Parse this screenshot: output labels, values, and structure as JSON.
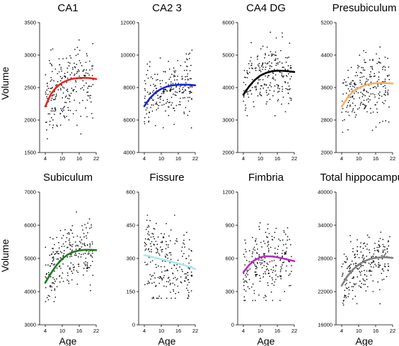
{
  "figure": {
    "ylabel": "Volume",
    "xlabel": "Age"
  },
  "chart_data": [
    {
      "type": "scatter",
      "title": "CA1",
      "xlabel": "",
      "ylabel": "Volume",
      "xlim": [
        2,
        22
      ],
      "ylim": [
        1500,
        3500
      ],
      "xticks": [
        4,
        10,
        16,
        22
      ],
      "yticks": [
        1500,
        2000,
        2500,
        3000,
        3500
      ],
      "ytick_labels": [
        "1500",
        "2000",
        "2500",
        "3000",
        "3500"
      ],
      "fit_color": "#e8231f",
      "fit": [
        [
          4,
          2210
        ],
        [
          6,
          2400
        ],
        [
          8,
          2510
        ],
        [
          10,
          2575
        ],
        [
          12,
          2615
        ],
        [
          14,
          2638
        ],
        [
          16,
          2648
        ],
        [
          18,
          2650
        ],
        [
          20,
          2645
        ],
        [
          22,
          2632
        ]
      ],
      "scatter_range": [
        4,
        21
      ],
      "scatter_center": [
        2200,
        2640
      ],
      "scatter_spread": 300,
      "scatter_bounds": [
        1530,
        3450
      ],
      "seed": 11
    },
    {
      "type": "scatter",
      "title": "CA2 3",
      "xlabel": "",
      "ylabel": "",
      "xlim": [
        2,
        22
      ],
      "ylim": [
        4000,
        12000
      ],
      "xticks": [
        4,
        10,
        16,
        22
      ],
      "yticks": [
        4000,
        6000,
        8000,
        10000,
        12000
      ],
      "ytick_labels": [
        "4000",
        "6000",
        "8000",
        "10000",
        "12000"
      ],
      "fit_color": "#1726d6",
      "fit": [
        [
          4,
          6850
        ],
        [
          6,
          7350
        ],
        [
          8,
          7700
        ],
        [
          10,
          7920
        ],
        [
          12,
          8060
        ],
        [
          14,
          8140
        ],
        [
          16,
          8170
        ],
        [
          18,
          8180
        ],
        [
          20,
          8170
        ],
        [
          22,
          8140
        ]
      ],
      "scatter_range": [
        4,
        21
      ],
      "scatter_center": [
        6900,
        8150
      ],
      "scatter_spread": 950,
      "scatter_bounds": [
        4300,
        11200
      ],
      "seed": 23
    },
    {
      "type": "scatter",
      "title": "CA4 DG",
      "xlabel": "",
      "ylabel": "",
      "xlim": [
        2,
        22
      ],
      "ylim": [
        2000,
        6000
      ],
      "xticks": [
        4,
        10,
        16,
        22
      ],
      "yticks": [
        2000,
        3000,
        4000,
        5000,
        6000
      ],
      "ytick_labels": [
        "2000",
        "3000",
        "4000",
        "5000",
        "6000"
      ],
      "fit_color": "#000000",
      "fit": [
        [
          4,
          3780
        ],
        [
          6,
          4030
        ],
        [
          8,
          4230
        ],
        [
          10,
          4370
        ],
        [
          12,
          4450
        ],
        [
          14,
          4500
        ],
        [
          16,
          4520
        ],
        [
          18,
          4515
        ],
        [
          20,
          4500
        ],
        [
          22,
          4480
        ]
      ],
      "scatter_range": [
        4,
        21
      ],
      "scatter_center": [
        3800,
        4500
      ],
      "scatter_spread": 480,
      "scatter_bounds": [
        2350,
        5950
      ],
      "seed": 37
    },
    {
      "type": "scatter",
      "title": "Presubiculum",
      "xlabel": "",
      "ylabel": "",
      "xlim": [
        2,
        22
      ],
      "ylim": [
        2000,
        5200
      ],
      "xticks": [
        4,
        10,
        16,
        22
      ],
      "yticks": [
        2000,
        2800,
        3600,
        4400,
        5200
      ],
      "ytick_labels": [
        "2000",
        "2800",
        "3600",
        "4400",
        "5200"
      ],
      "fit_color": "#f5b06a",
      "fit": [
        [
          4,
          3130
        ],
        [
          6,
          3350
        ],
        [
          8,
          3500
        ],
        [
          10,
          3590
        ],
        [
          12,
          3650
        ],
        [
          14,
          3690
        ],
        [
          16,
          3710
        ],
        [
          18,
          3715
        ],
        [
          20,
          3710
        ],
        [
          22,
          3700
        ]
      ],
      "scatter_range": [
        4,
        21
      ],
      "scatter_center": [
        3100,
        3700
      ],
      "scatter_spread": 400,
      "scatter_bounds": [
        2450,
        4800
      ],
      "seed": 41
    },
    {
      "type": "scatter",
      "title": "Subiculum",
      "xlabel": "Age",
      "ylabel": "Volume",
      "xlim": [
        2,
        22
      ],
      "ylim": [
        3000,
        7000
      ],
      "xticks": [
        4,
        10,
        16,
        22
      ],
      "yticks": [
        3000,
        4000,
        5000,
        6000,
        7000
      ],
      "ytick_labels": [
        "3000",
        "4000",
        "5000",
        "6000",
        "7000"
      ],
      "fit_color": "#1e7a1e",
      "fit": [
        [
          4,
          4270
        ],
        [
          6,
          4550
        ],
        [
          8,
          4800
        ],
        [
          10,
          4990
        ],
        [
          12,
          5120
        ],
        [
          14,
          5200
        ],
        [
          16,
          5240
        ],
        [
          18,
          5260
        ],
        [
          20,
          5260
        ],
        [
          22,
          5250
        ]
      ],
      "scatter_range": [
        4,
        21
      ],
      "scatter_center": [
        4300,
        5250
      ],
      "scatter_spread": 480,
      "scatter_bounds": [
        3700,
        6950
      ],
      "seed": 53
    },
    {
      "type": "scatter",
      "title": "Fissure",
      "xlabel": "Age",
      "ylabel": "",
      "xlim": [
        2,
        22
      ],
      "ylim": [
        0,
        600
      ],
      "xticks": [
        4,
        10,
        16,
        22
      ],
      "yticks": [
        0,
        150,
        300,
        450,
        600
      ],
      "ytick_labels": [
        "0",
        "150",
        "300",
        "450",
        "600"
      ],
      "fit_color": "#aee6f2",
      "fit": [
        [
          4,
          315
        ],
        [
          8,
          303
        ],
        [
          12,
          290
        ],
        [
          16,
          277
        ],
        [
          20,
          262
        ],
        [
          22,
          252
        ]
      ],
      "scatter_range": [
        4,
        21
      ],
      "scatter_center": [
        320,
        255
      ],
      "scatter_spread": 95,
      "scatter_bounds": [
        120,
        585
      ],
      "seed": 67
    },
    {
      "type": "scatter",
      "title": "Fimbria",
      "xlabel": "Age",
      "ylabel": "",
      "xlim": [
        2,
        22
      ],
      "ylim": [
        0,
        1200
      ],
      "xticks": [
        4,
        10,
        16,
        22
      ],
      "yticks": [
        0,
        300,
        600,
        900,
        1200
      ],
      "ytick_labels": [
        "0",
        "300",
        "600",
        "900",
        "1200"
      ],
      "fit_color": "#b72bc4",
      "fit": [
        [
          4,
          475
        ],
        [
          6,
          540
        ],
        [
          8,
          585
        ],
        [
          10,
          610
        ],
        [
          12,
          620
        ],
        [
          14,
          618
        ],
        [
          16,
          610
        ],
        [
          18,
          600
        ],
        [
          20,
          588
        ],
        [
          22,
          575
        ]
      ],
      "scatter_range": [
        4,
        21
      ],
      "scatter_center": [
        480,
        580
      ],
      "scatter_spread": 150,
      "scatter_bounds": [
        220,
        1100
      ],
      "seed": 79
    },
    {
      "type": "scatter",
      "title": "Total hippocampus",
      "xlabel": "Age",
      "ylabel": "",
      "xlim": [
        2,
        22
      ],
      "ylim": [
        16000,
        40000
      ],
      "xticks": [
        4,
        10,
        16,
        22
      ],
      "yticks": [
        16000,
        22000,
        28000,
        34000,
        40000
      ],
      "ytick_labels": [
        "16000",
        "22000",
        "28000",
        "34000",
        "40000"
      ],
      "fit_color": "#7f7f7f",
      "fit": [
        [
          4,
          23100
        ],
        [
          6,
          24800
        ],
        [
          8,
          26000
        ],
        [
          10,
          26900
        ],
        [
          12,
          27500
        ],
        [
          14,
          27900
        ],
        [
          16,
          28100
        ],
        [
          18,
          28200
        ],
        [
          20,
          28200
        ],
        [
          22,
          28100
        ]
      ],
      "scatter_range": [
        4,
        21
      ],
      "scatter_center": [
        23000,
        28100
      ],
      "scatter_spread": 2600,
      "scatter_bounds": [
        16500,
        35500
      ],
      "seed": 97
    }
  ]
}
